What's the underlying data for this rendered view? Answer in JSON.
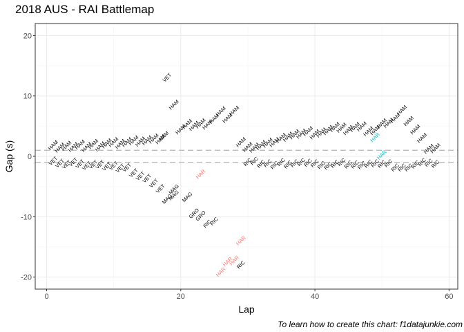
{
  "chart_data": {
    "type": "scatter",
    "title": "2018 AUS - RAI Battlemap",
    "xlabel": "Lap",
    "ylabel": "Gap (s)",
    "xlim": [
      -1.7,
      61.3
    ],
    "ylim": [
      -22,
      22
    ],
    "xticks": [
      0,
      20,
      40,
      60
    ],
    "yticks": [
      -20,
      -10,
      0,
      10,
      20
    ],
    "grid": true,
    "reference_lines": [
      1,
      -1
    ],
    "caption": "To learn how to create this chart: f1datajunkie.com",
    "colors": {
      "default": "#000000",
      "HAR_red": "#f8766d",
      "HAR_teal": "#00bfc4",
      "refline": "#b3b3b3",
      "grid": "#ebebeb",
      "border": "#333333"
    },
    "points": [
      {
        "x": 1,
        "y": 1.8,
        "label": "HAM"
      },
      {
        "x": 2,
        "y": 1.4,
        "label": "HAM"
      },
      {
        "x": 3,
        "y": 1.7,
        "label": "HAM"
      },
      {
        "x": 4,
        "y": 1.5,
        "label": "HAM"
      },
      {
        "x": 5,
        "y": 1.9,
        "label": "HAM"
      },
      {
        "x": 6,
        "y": 1.5,
        "label": "HAM"
      },
      {
        "x": 7,
        "y": 2.0,
        "label": "HAM"
      },
      {
        "x": 8,
        "y": 1.6,
        "label": "HAM"
      },
      {
        "x": 9,
        "y": 2.1,
        "label": "HAM"
      },
      {
        "x": 10,
        "y": 2.3,
        "label": "HAM"
      },
      {
        "x": 11,
        "y": 2.0,
        "label": "HAM"
      },
      {
        "x": 12,
        "y": 2.3,
        "label": "HAM"
      },
      {
        "x": 13,
        "y": 2.6,
        "label": "HAM"
      },
      {
        "x": 14,
        "y": 2.4,
        "label": "HAM"
      },
      {
        "x": 15,
        "y": 2.6,
        "label": "HAM"
      },
      {
        "x": 16,
        "y": 2.9,
        "label": "HAM"
      },
      {
        "x": 17,
        "y": 2.8,
        "label": "HAM"
      },
      {
        "x": 17.5,
        "y": 3.3,
        "label": "HAM"
      },
      {
        "x": 18,
        "y": 13.0,
        "label": "VET"
      },
      {
        "x": 19,
        "y": 8.5,
        "label": "HAM"
      },
      {
        "x": 20,
        "y": 4.4,
        "label": "HAM"
      },
      {
        "x": 21,
        "y": 5.3,
        "label": "HAM"
      },
      {
        "x": 22,
        "y": 5.0,
        "label": "HAM"
      },
      {
        "x": 23,
        "y": 5.4,
        "label": "HAM"
      },
      {
        "x": 24,
        "y": 5.2,
        "label": "HAM"
      },
      {
        "x": 25,
        "y": 6.2,
        "label": "HAM"
      },
      {
        "x": 26,
        "y": 7.4,
        "label": "HAM"
      },
      {
        "x": 27,
        "y": 6.3,
        "label": "HAM"
      },
      {
        "x": 28,
        "y": 7.5,
        "label": "HAM"
      },
      {
        "x": 29,
        "y": 2.3,
        "label": "HAM"
      },
      {
        "x": 30,
        "y": 1.5,
        "label": "HAM"
      },
      {
        "x": 31,
        "y": 1.4,
        "label": "HAM"
      },
      {
        "x": 32,
        "y": 1.8,
        "label": "HAM"
      },
      {
        "x": 33,
        "y": 2.2,
        "label": "HAM"
      },
      {
        "x": 34,
        "y": 2.3,
        "label": "HAM"
      },
      {
        "x": 35,
        "y": 3.0,
        "label": "HAM"
      },
      {
        "x": 36,
        "y": 3.2,
        "label": "HAM"
      },
      {
        "x": 37,
        "y": 3.6,
        "label": "HAM"
      },
      {
        "x": 38,
        "y": 3.7,
        "label": "HAM"
      },
      {
        "x": 39,
        "y": 4.1,
        "label": "HAM"
      },
      {
        "x": 40,
        "y": 3.6,
        "label": "HAM"
      },
      {
        "x": 41,
        "y": 3.9,
        "label": "HAM"
      },
      {
        "x": 42,
        "y": 4.3,
        "label": "HAM"
      },
      {
        "x": 43,
        "y": 4.8,
        "label": "HAM"
      },
      {
        "x": 44,
        "y": 4.7,
        "label": "HAM"
      },
      {
        "x": 45,
        "y": 4.3,
        "label": "HAM"
      },
      {
        "x": 46,
        "y": 4.8,
        "label": "HAM"
      },
      {
        "x": 47,
        "y": 4.9,
        "label": "HAM"
      },
      {
        "x": 48,
        "y": 4.1,
        "label": "HAM"
      },
      {
        "x": 49,
        "y": 4.3,
        "label": "HAM"
      },
      {
        "x": 50,
        "y": 5.4,
        "label": "HAM"
      },
      {
        "x": 51,
        "y": 5.5,
        "label": "HAM"
      },
      {
        "x": 52,
        "y": 6.3,
        "label": "HAM"
      },
      {
        "x": 53,
        "y": 7.6,
        "label": "HAM"
      },
      {
        "x": 54,
        "y": 5.8,
        "label": "HAM"
      },
      {
        "x": 55,
        "y": 4.4,
        "label": "HAM"
      },
      {
        "x": 56,
        "y": 3.0,
        "label": "HAM"
      },
      {
        "x": 57,
        "y": 1.2,
        "label": "HAM"
      },
      {
        "x": 58,
        "y": 1.3,
        "label": "HAM"
      },
      {
        "x": 1,
        "y": -0.8,
        "label": "VET"
      },
      {
        "x": 2,
        "y": -1.2,
        "label": "VET"
      },
      {
        "x": 3,
        "y": -1.4,
        "label": "VET"
      },
      {
        "x": 4,
        "y": -1.0,
        "label": "VET"
      },
      {
        "x": 5,
        "y": -1.3,
        "label": "VET"
      },
      {
        "x": 6,
        "y": -1.6,
        "label": "VET"
      },
      {
        "x": 7,
        "y": -1.4,
        "label": "VET"
      },
      {
        "x": 8,
        "y": -1.4,
        "label": "VET"
      },
      {
        "x": 9,
        "y": -1.7,
        "label": "VET"
      },
      {
        "x": 10,
        "y": -1.6,
        "label": "VET"
      },
      {
        "x": 11,
        "y": -2.0,
        "label": "VET"
      },
      {
        "x": 12,
        "y": -1.9,
        "label": "VET"
      },
      {
        "x": 13,
        "y": -2.8,
        "label": "VET"
      },
      {
        "x": 14,
        "y": -3.3,
        "label": "VET"
      },
      {
        "x": 15,
        "y": -3.7,
        "label": "VET"
      },
      {
        "x": 16,
        "y": -4.5,
        "label": "VET"
      },
      {
        "x": 17,
        "y": -5.4,
        "label": "VET"
      },
      {
        "x": 19,
        "y": -5.5,
        "label": "MAG"
      },
      {
        "x": 18,
        "y": -7.1,
        "label": "MAG"
      },
      {
        "x": 19,
        "y": -6.5,
        "label": "MAG"
      },
      {
        "x": 21,
        "y": -6.8,
        "label": "MAG"
      },
      {
        "x": 22,
        "y": -9.5,
        "label": "GRO"
      },
      {
        "x": 23,
        "y": -9.9,
        "label": "GRO"
      },
      {
        "x": 24,
        "y": -11.2,
        "label": "RIC"
      },
      {
        "x": 25,
        "y": -10.8,
        "label": "RIC"
      },
      {
        "x": 29,
        "y": -18.0,
        "label": "RIC"
      },
      {
        "x": 30,
        "y": -1.0,
        "label": "RIC"
      },
      {
        "x": 31,
        "y": -0.8,
        "label": "RIC"
      },
      {
        "x": 32,
        "y": -1.3,
        "label": "RIC"
      },
      {
        "x": 33,
        "y": -1.2,
        "label": "RIC"
      },
      {
        "x": 34,
        "y": -1.5,
        "label": "RIC"
      },
      {
        "x": 35,
        "y": -1.0,
        "label": "RIC"
      },
      {
        "x": 36,
        "y": -1.4,
        "label": "RIC"
      },
      {
        "x": 37,
        "y": -1.2,
        "label": "RIC"
      },
      {
        "x": 38,
        "y": -1.0,
        "label": "RIC"
      },
      {
        "x": 39,
        "y": -1.1,
        "label": "RIC"
      },
      {
        "x": 40,
        "y": -1.2,
        "label": "RIC"
      },
      {
        "x": 41,
        "y": -1.5,
        "label": "RIC"
      },
      {
        "x": 42,
        "y": -1.6,
        "label": "RIC"
      },
      {
        "x": 43,
        "y": -1.3,
        "label": "RIC"
      },
      {
        "x": 44,
        "y": -1.0,
        "label": "RIC"
      },
      {
        "x": 45,
        "y": -1.4,
        "label": "RIC"
      },
      {
        "x": 46,
        "y": -1.4,
        "label": "RIC"
      },
      {
        "x": 47,
        "y": -1.5,
        "label": "RIC"
      },
      {
        "x": 48,
        "y": -1.3,
        "label": "RIC"
      },
      {
        "x": 49,
        "y": -1.2,
        "label": "RIC"
      },
      {
        "x": 50,
        "y": -1.3,
        "label": "RIC"
      },
      {
        "x": 51,
        "y": -1.2,
        "label": "RIC"
      },
      {
        "x": 52,
        "y": -1.9,
        "label": "RIC"
      },
      {
        "x": 53,
        "y": -1.9,
        "label": "RIC"
      },
      {
        "x": 54,
        "y": -1.9,
        "label": "RIC"
      },
      {
        "x": 55,
        "y": -1.4,
        "label": "RIC"
      },
      {
        "x": 56,
        "y": -1.0,
        "label": "RIC"
      },
      {
        "x": 57,
        "y": -1.1,
        "label": "RIC"
      },
      {
        "x": 58,
        "y": -1.3,
        "label": "RIC"
      },
      {
        "x": 23,
        "y": -3.0,
        "label": "HAR",
        "color": "#f8766d"
      },
      {
        "x": 29,
        "y": -14.0,
        "label": "HAR",
        "color": "#f8766d"
      },
      {
        "x": 27,
        "y": -17.5,
        "label": "HAR",
        "color": "#f8766d"
      },
      {
        "x": 28,
        "y": -17.3,
        "label": "HAR",
        "color": "#f8766d"
      },
      {
        "x": 26,
        "y": -19.2,
        "label": "HAR",
        "color": "#f8766d"
      },
      {
        "x": 49,
        "y": 3.1,
        "label": "HAR",
        "color": "#00bfc4"
      },
      {
        "x": 50,
        "y": 0.2,
        "label": "HAR",
        "color": "#00bfc4"
      }
    ]
  }
}
